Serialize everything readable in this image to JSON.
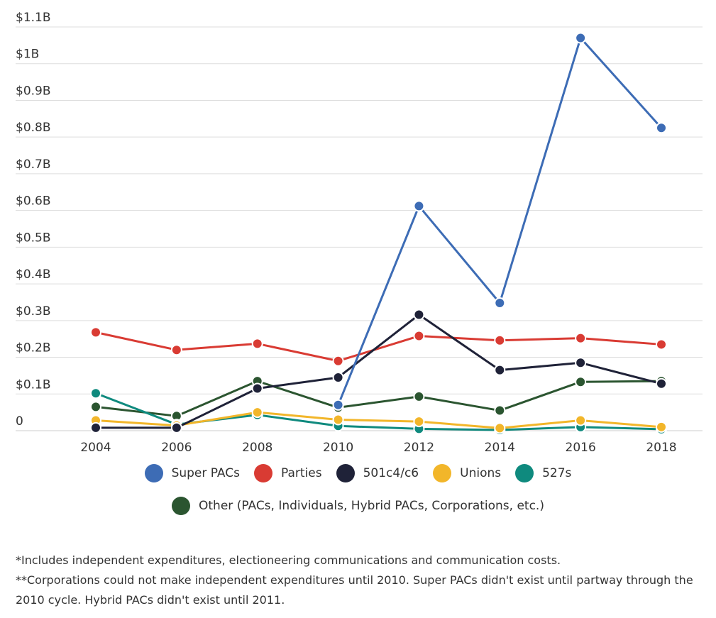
{
  "chart_data": {
    "type": "line",
    "x": [
      2004,
      2006,
      2008,
      2010,
      2012,
      2014,
      2016,
      2018
    ],
    "y_ticks": [
      {
        "value": 0,
        "label": "0"
      },
      {
        "value": 0.1,
        "label": "$0.1B"
      },
      {
        "value": 0.2,
        "label": "$0.2B"
      },
      {
        "value": 0.3,
        "label": "$0.3B"
      },
      {
        "value": 0.4,
        "label": "$0.4B"
      },
      {
        "value": 0.5,
        "label": "$0.5B"
      },
      {
        "value": 0.6,
        "label": "$0.6B"
      },
      {
        "value": 0.7,
        "label": "$0.7B"
      },
      {
        "value": 0.8,
        "label": "$0.8B"
      },
      {
        "value": 0.9,
        "label": "$0.9B"
      },
      {
        "value": 1.0,
        "label": "$1B"
      },
      {
        "value": 1.1,
        "label": "$1.1B"
      }
    ],
    "ylim": [
      0,
      1.1
    ],
    "grid": true,
    "legend_position": "bottom",
    "series": [
      {
        "name": "Other (PACs, Individuals, Hybrid PACs, Corporations, etc.)",
        "color": "#2b5530",
        "values": [
          0.065,
          0.04,
          0.135,
          0.063,
          0.093,
          0.055,
          0.133,
          0.135
        ]
      },
      {
        "name": "527s",
        "color": "#0f8a7e",
        "values": [
          0.102,
          0.017,
          0.043,
          0.013,
          0.005,
          0.002,
          0.01,
          0.004
        ]
      },
      {
        "name": "Unions",
        "color": "#f2b62a",
        "values": [
          0.028,
          0.014,
          0.05,
          0.03,
          0.025,
          0.007,
          0.028,
          0.01
        ]
      },
      {
        "name": "Parties",
        "color": "#d93b33",
        "values": [
          0.268,
          0.22,
          0.237,
          0.19,
          0.258,
          0.246,
          0.252,
          0.235
        ]
      },
      {
        "name": "501c4/c6",
        "color": "#1f2238",
        "values": [
          0.008,
          0.008,
          0.115,
          0.145,
          0.316,
          0.165,
          0.185,
          0.128
        ]
      },
      {
        "name": "Super PACs",
        "color": "#3d6cb5",
        "values": [
          null,
          null,
          null,
          0.07,
          0.612,
          0.348,
          1.07,
          0.825
        ]
      }
    ]
  },
  "legend": {
    "row1": [
      {
        "label": "Super PACs",
        "color": "#3d6cb5"
      },
      {
        "label": "Parties",
        "color": "#d93b33"
      },
      {
        "label": "501c4/c6",
        "color": "#1f2238"
      },
      {
        "label": "Unions",
        "color": "#f2b62a"
      },
      {
        "label": "527s",
        "color": "#0f8a7e"
      }
    ],
    "row2": [
      {
        "label": "Other (PACs, Individuals, Hybrid PACs, Corporations, etc.)",
        "color": "#2b5530"
      }
    ]
  },
  "footnotes": {
    "note1": "*Includes independent expenditures, electioneering communications and communication costs.",
    "note2": "**Corporations could not make independent expenditures until 2010. Super PACs didn't exist until partway through the 2010 cycle. Hybrid PACs didn't exist until 2011."
  }
}
